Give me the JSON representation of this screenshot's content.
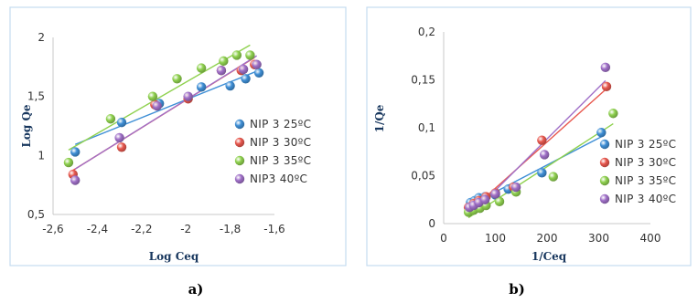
{
  "chart_data": [
    {
      "type": "scatter",
      "title": "",
      "caption": "a)",
      "xlabel": "Log Ceq",
      "ylabel": "Log Qe",
      "xlim": [
        -2.6,
        -1.6
      ],
      "ylim": [
        0.5,
        2
      ],
      "x_tick_labels": [
        "-2,6",
        "-2,4",
        "-2,2",
        "-2",
        "-1,8",
        "-1,6"
      ],
      "y_tick_labels": [
        "0,5",
        "1",
        "1,5",
        "2"
      ],
      "grid": false,
      "legend_position": "right",
      "series": [
        {
          "name": "NIP 3 25ºC",
          "color": "#3f8fd6",
          "trendline": true,
          "x": [
            -2.5,
            -2.29,
            -2.12,
            -1.93,
            -1.8,
            -1.73,
            -1.67
          ],
          "y": [
            1.03,
            1.28,
            1.44,
            1.58,
            1.59,
            1.65,
            1.7
          ]
        },
        {
          "name": "NIP 3 30ºC",
          "color": "#e8584e",
          "trendline": true,
          "x": [
            -2.51,
            -2.29,
            -2.14,
            -1.99,
            -1.84,
            -1.75,
            -1.69
          ],
          "y": [
            0.84,
            1.07,
            1.43,
            1.48,
            1.72,
            1.72,
            1.77
          ]
        },
        {
          "name": "NIP 3 35ºC",
          "color": "#8fd14f",
          "trendline": true,
          "x": [
            -2.53,
            -2.34,
            -2.15,
            -2.04,
            -1.93,
            -1.83,
            -1.77,
            -1.71
          ],
          "y": [
            0.94,
            1.31,
            1.5,
            1.65,
            1.74,
            1.8,
            1.85,
            1.85
          ]
        },
        {
          "name": "NIP3 40ºC",
          "color": "#a070c8",
          "trendline": true,
          "x": [
            -2.5,
            -2.3,
            -2.13,
            -1.99,
            -1.84,
            -1.74,
            -1.68
          ],
          "y": [
            0.79,
            1.15,
            1.42,
            1.5,
            1.72,
            1.73,
            1.77
          ]
        }
      ]
    },
    {
      "type": "scatter",
      "title": "",
      "caption": "b)",
      "xlabel": "1/Ceq",
      "ylabel": "1/Qe",
      "xlim": [
        0,
        400
      ],
      "ylim": [
        0,
        0.2
      ],
      "x_tick_labels": [
        "0",
        "100",
        "200",
        "300",
        "400"
      ],
      "y_tick_labels": [
        "0",
        "0,05",
        "0,1",
        "0,15",
        "0,2"
      ],
      "grid": false,
      "legend_position": "right",
      "series": [
        {
          "name": "NIP 3 25ºC",
          "color": "#3f8fd6",
          "trendline": true,
          "x": [
            52,
            60,
            68,
            80,
            100,
            125,
            190,
            305
          ],
          "y": [
            0.022,
            0.024,
            0.027,
            0.028,
            0.03,
            0.036,
            0.053,
            0.095
          ]
        },
        {
          "name": "NIP 3 30ºC",
          "color": "#e8584e",
          "trendline": true,
          "x": [
            48,
            58,
            68,
            82,
            100,
            135,
            190,
            315
          ],
          "y": [
            0.017,
            0.021,
            0.024,
            0.028,
            0.032,
            0.038,
            0.087,
            0.143
          ]
        },
        {
          "name": "NIP 3 35ºC",
          "color": "#8fd14f",
          "trendline": true,
          "x": [
            48,
            58,
            70,
            82,
            108,
            140,
            212,
            328
          ],
          "y": [
            0.012,
            0.014,
            0.016,
            0.019,
            0.023,
            0.033,
            0.049,
            0.115
          ]
        },
        {
          "name": "NIP 3 40ºC",
          "color": "#a070c8",
          "trendline": true,
          "x": [
            50,
            58,
            68,
            80,
            100,
            140,
            195,
            313
          ],
          "y": [
            0.017,
            0.019,
            0.022,
            0.025,
            0.031,
            0.038,
            0.072,
            0.163
          ]
        }
      ]
    }
  ]
}
